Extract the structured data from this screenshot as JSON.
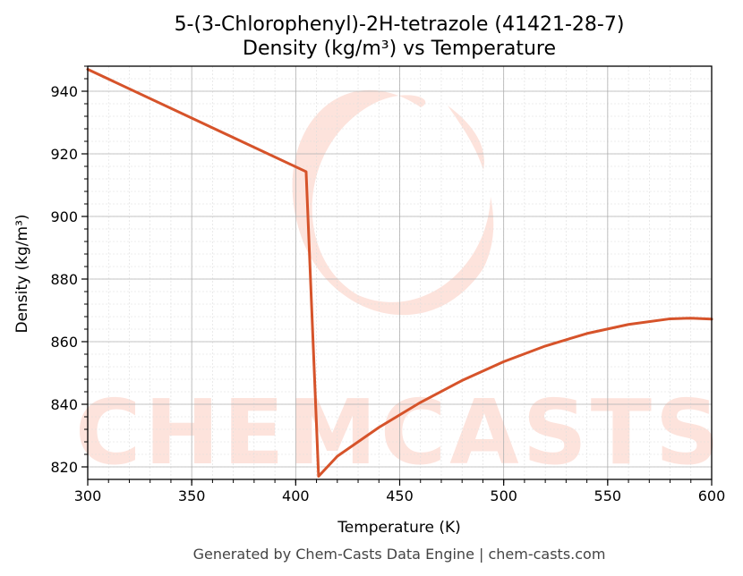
{
  "chart_data": {
    "type": "line",
    "title": "5-(3-Chlorophenyl)-2H-tetrazole (41421-28-7)",
    "subtitle": "Density (kg/m³) vs Temperature",
    "xlabel": "Temperature (K)",
    "ylabel": "Density (kg/m³)",
    "xlim": [
      300,
      600
    ],
    "ylim": [
      816,
      948
    ],
    "xticks": [
      300,
      350,
      400,
      450,
      500,
      550,
      600
    ],
    "yticks": [
      820,
      840,
      860,
      880,
      900,
      920,
      940
    ],
    "grid": true,
    "series": [
      {
        "color": "#d6532a",
        "points": [
          [
            300,
            947
          ],
          [
            405,
            914.3
          ],
          [
            411,
            817
          ],
          [
            420,
            823.4
          ],
          [
            440,
            832.6
          ],
          [
            460,
            840.6
          ],
          [
            480,
            847.6
          ],
          [
            500,
            853.6
          ],
          [
            520,
            858.6
          ],
          [
            540,
            862.6
          ],
          [
            560,
            865.5
          ],
          [
            580,
            867.3
          ],
          [
            590,
            867.5
          ],
          [
            600,
            867.2
          ]
        ]
      }
    ]
  },
  "footer": "Generated by Chem-Casts Data Engine | chem-casts.com",
  "watermark": {
    "text": "CHEMCASTS",
    "color": "#fde3dc"
  }
}
